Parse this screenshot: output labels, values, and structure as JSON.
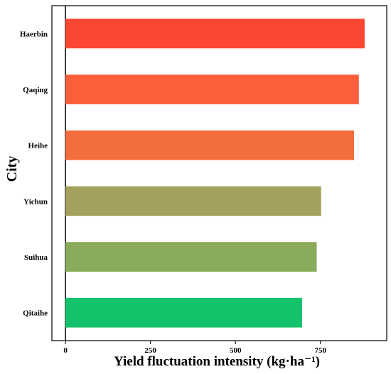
{
  "chart_data": {
    "type": "bar",
    "orientation": "horizontal",
    "title": "",
    "xlabel": "Yield fluctuation intensity (kg·ha⁻¹)",
    "ylabel": "City",
    "categories": [
      "Haerbin",
      "Qaqing",
      "Heihe",
      "Yichun",
      "Suihua",
      "Qitaihe"
    ],
    "values": [
      880,
      863,
      849,
      752,
      739,
      696
    ],
    "colors": [
      "#fc4733",
      "#fa5f3a",
      "#f36d3d",
      "#a3a15c",
      "#8aab5c",
      "#14c26b"
    ],
    "xlim": [
      -40,
      945
    ],
    "xticks": [
      0,
      250,
      500,
      750
    ],
    "xtick_labels": [
      "0",
      "250",
      "500",
      "750"
    ],
    "zero_line": true,
    "grid": false,
    "legend": "none"
  }
}
